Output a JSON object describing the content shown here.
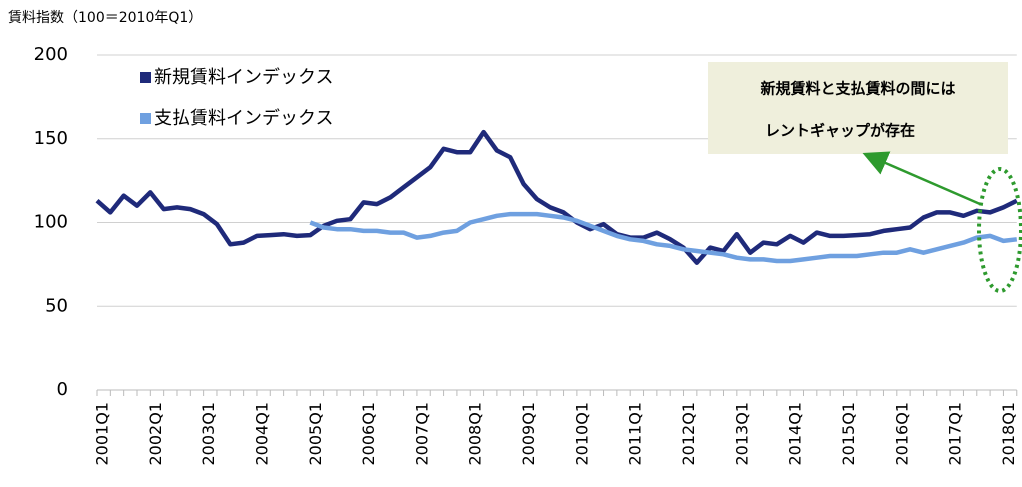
{
  "chart_data": {
    "type": "line",
    "y_axis_title": "賃料指数（100＝2010年Q1）",
    "annotation": [
      "新規賃料と支払賃料の間には",
      "レントギャップが存在"
    ],
    "categories": [
      "2001Q1",
      null,
      null,
      null,
      "2002Q1",
      null,
      null,
      null,
      "2003Q1",
      null,
      null,
      null,
      "2004Q1",
      null,
      null,
      null,
      "2005Q1",
      null,
      null,
      null,
      "2006Q1",
      null,
      null,
      null,
      "2007Q1",
      null,
      null,
      null,
      "2008Q1",
      null,
      null,
      null,
      "2009Q1",
      null,
      null,
      null,
      "2010Q1",
      null,
      null,
      null,
      "2011Q1",
      null,
      null,
      null,
      "2012Q1",
      null,
      null,
      null,
      "2013Q1",
      null,
      null,
      null,
      "2014Q1",
      null,
      null,
      null,
      "2015Q1",
      null,
      null,
      null,
      "2016Q1",
      null,
      null,
      null,
      "2017Q1",
      null,
      null,
      null,
      "2018Q1",
      null
    ],
    "series": [
      {
        "name": "新規賃料インデックス",
        "color": "#1f2a7a",
        "values": [
          113,
          106,
          116,
          110,
          118,
          108,
          109,
          108,
          105,
          99,
          87,
          88,
          92,
          92.5,
          93,
          92,
          92.5,
          98,
          101,
          102,
          112,
          111,
          115,
          121,
          127,
          133,
          144,
          142,
          142,
          154,
          143,
          139,
          123,
          114,
          109,
          106,
          100,
          96,
          99,
          93,
          91,
          91,
          94,
          90,
          85,
          76,
          85,
          83,
          93,
          82,
          88,
          87,
          92,
          88,
          94,
          92,
          92,
          92.5,
          93,
          95,
          96,
          97,
          103,
          106,
          106,
          104,
          107,
          106,
          109,
          113
        ]
      },
      {
        "name": "支払賃料インデックス",
        "color": "#6fa0e0",
        "values": [
          null,
          null,
          null,
          null,
          null,
          null,
          null,
          null,
          null,
          null,
          null,
          null,
          null,
          null,
          null,
          null,
          100,
          97,
          96,
          96,
          95,
          95,
          94,
          94,
          91,
          92,
          94,
          95,
          100,
          102,
          104,
          105,
          105,
          105,
          104,
          103,
          101,
          98,
          95,
          92,
          90,
          89,
          87,
          86,
          84,
          83,
          82,
          81,
          79,
          78,
          78,
          77,
          77,
          78,
          79,
          80,
          80,
          80,
          81,
          82,
          82,
          84,
          82,
          84,
          86,
          88,
          91,
          92,
          89,
          90
        ]
      }
    ],
    "ylim": [
      0,
      200
    ],
    "yticks": [
      0,
      50,
      100,
      150,
      200
    ],
    "grid": true
  }
}
